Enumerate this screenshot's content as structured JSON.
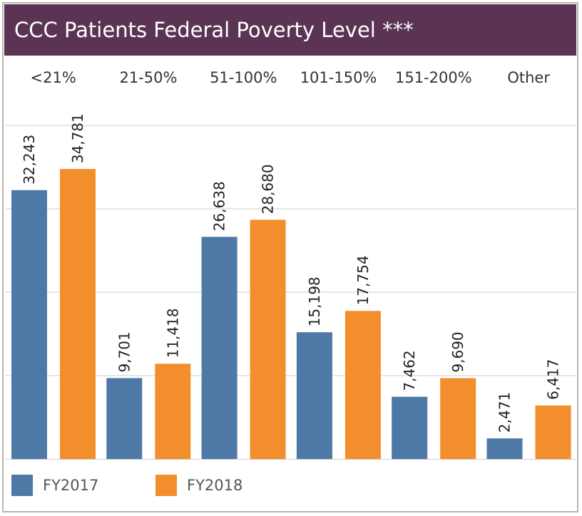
{
  "colors": {
    "title_bg": "#5b3454",
    "fy2017": "#4e79a7",
    "fy2018": "#f28e2b",
    "grid": "#e6e6e6"
  },
  "chart_data": {
    "type": "bar",
    "title": "CCC Patients Federal Poverty Level ***",
    "xlabel": "",
    "ylabel": "",
    "categories": [
      "<21%",
      "21-50%",
      "51-100%",
      "101-150%",
      "151-200%",
      "Other"
    ],
    "series": [
      {
        "name": "FY2017",
        "values": [
          32243,
          9701,
          26638,
          15198,
          7462,
          2471
        ],
        "labels": [
          "32,243",
          "9,701",
          "26,638",
          "15,198",
          "7,462",
          "2,471"
        ]
      },
      {
        "name": "FY2018",
        "values": [
          34781,
          11418,
          28680,
          17754,
          9690,
          6417
        ],
        "labels": [
          "34,781",
          "11,418",
          "28,680",
          "17,754",
          "9,690",
          "6,417"
        ]
      }
    ],
    "ylim": [
      0,
      40000
    ],
    "grid": true,
    "legend": "bottom-left"
  }
}
